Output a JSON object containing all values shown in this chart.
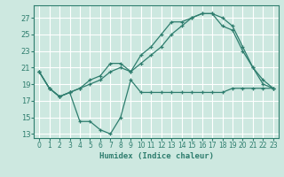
{
  "xlabel": "Humidex (Indice chaleur)",
  "bg_color": "#cde8e0",
  "grid_color": "#ffffff",
  "line_color": "#2e7d6e",
  "xlim": [
    -0.5,
    23.5
  ],
  "ylim": [
    12.5,
    28.5
  ],
  "xticks": [
    0,
    1,
    2,
    3,
    4,
    5,
    6,
    7,
    8,
    9,
    10,
    11,
    12,
    13,
    14,
    15,
    16,
    17,
    18,
    19,
    20,
    21,
    22,
    23
  ],
  "yticks": [
    13,
    15,
    17,
    19,
    21,
    23,
    25,
    27
  ],
  "line1_x": [
    0,
    1,
    2,
    3,
    4,
    5,
    6,
    7,
    8,
    9,
    10,
    11,
    12,
    13,
    14,
    15,
    16,
    17,
    18,
    19,
    20,
    21,
    22,
    23
  ],
  "line1_y": [
    20.5,
    18.5,
    17.5,
    18.0,
    14.5,
    14.5,
    13.5,
    13.0,
    15.0,
    19.5,
    18.0,
    18.0,
    18.0,
    18.0,
    18.0,
    18.0,
    18.0,
    18.0,
    18.0,
    18.5,
    18.5,
    18.5,
    18.5,
    18.5
  ],
  "line2_x": [
    0,
    1,
    2,
    3,
    4,
    5,
    6,
    7,
    8,
    9,
    10,
    11,
    12,
    13,
    14,
    15,
    16,
    17,
    18,
    19,
    20,
    21,
    22,
    23
  ],
  "line2_y": [
    20.5,
    18.5,
    17.5,
    18.0,
    18.5,
    19.5,
    20.0,
    21.5,
    21.5,
    20.5,
    22.5,
    23.5,
    25.0,
    26.5,
    26.5,
    27.0,
    27.5,
    27.5,
    27.0,
    26.0,
    23.5,
    21.0,
    19.5,
    18.5
  ],
  "line3_x": [
    0,
    1,
    2,
    3,
    4,
    5,
    6,
    7,
    8,
    9,
    10,
    11,
    12,
    13,
    14,
    15,
    16,
    17,
    18,
    19,
    20,
    21,
    22,
    23
  ],
  "line3_y": [
    20.5,
    18.5,
    17.5,
    18.0,
    18.5,
    19.0,
    19.5,
    20.5,
    21.0,
    20.5,
    21.5,
    22.5,
    23.5,
    25.0,
    26.0,
    27.0,
    27.5,
    27.5,
    26.0,
    25.5,
    23.0,
    21.0,
    19.0,
    18.5
  ]
}
